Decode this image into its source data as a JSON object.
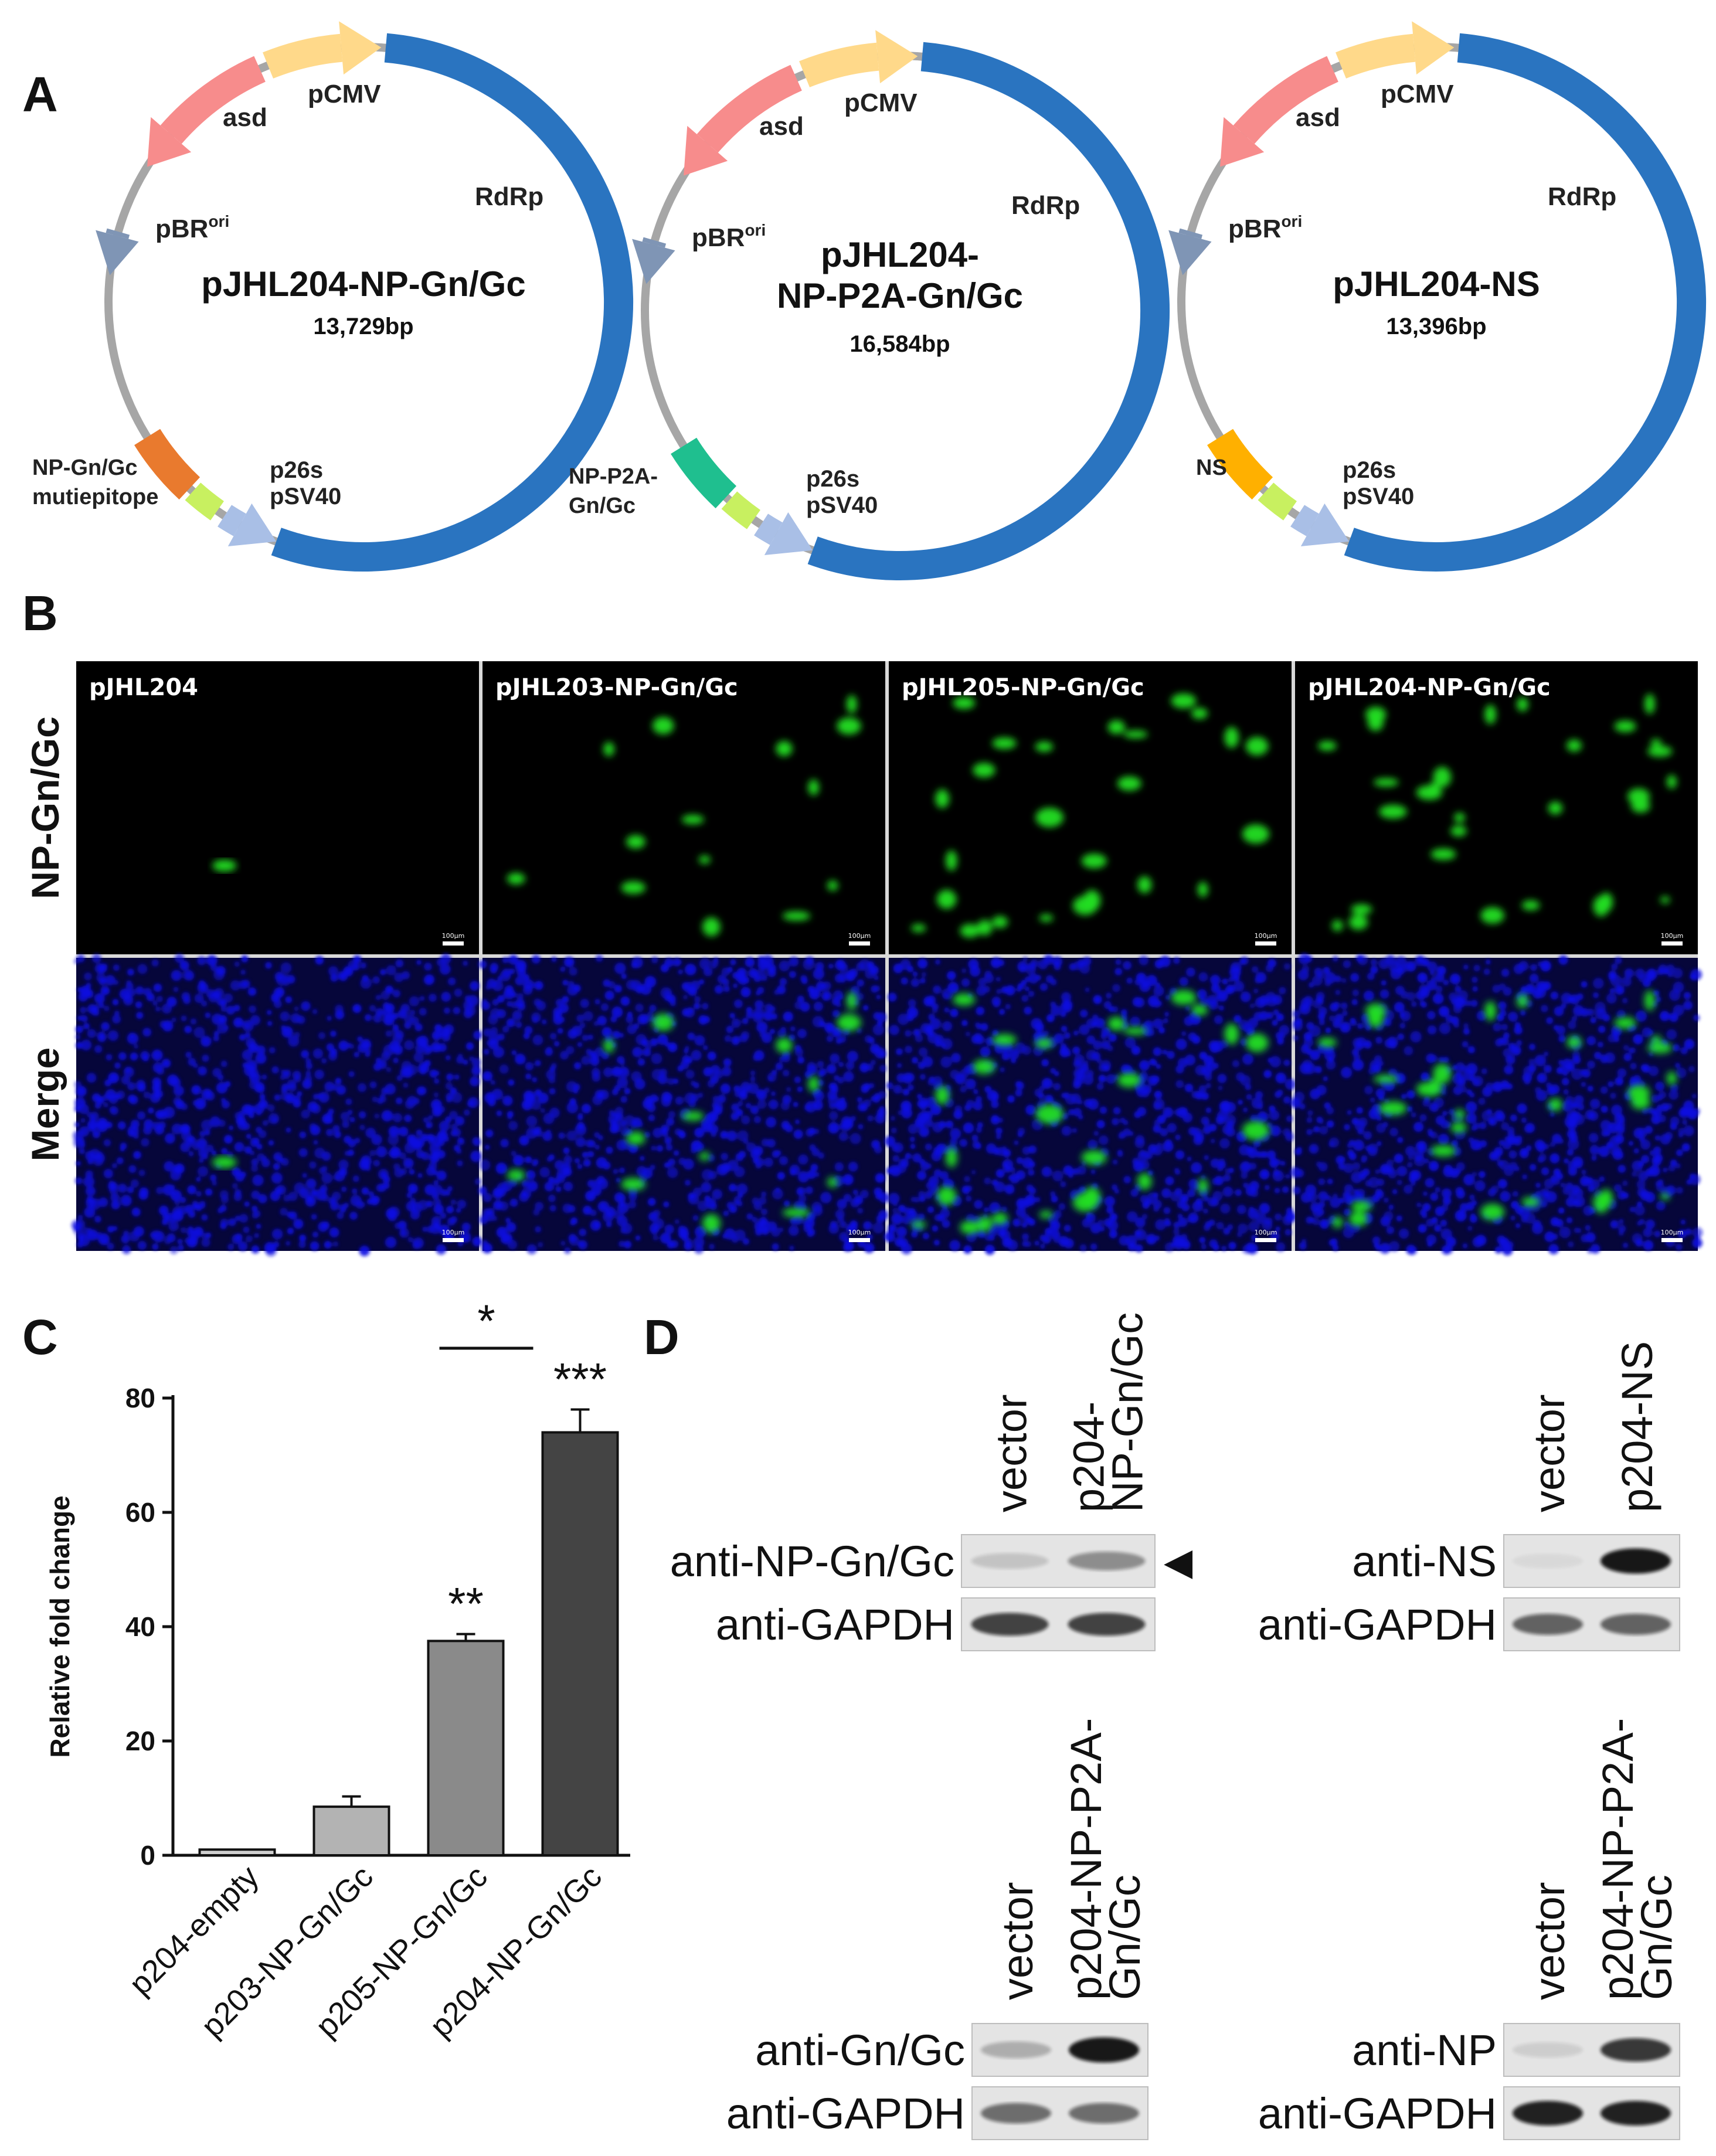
{
  "panels": {
    "A": "A",
    "B": "B",
    "C": "C",
    "D": "D"
  },
  "plasmid_maps": [
    {
      "name_lines": [
        "pJHL204-NP-Gn/Gc"
      ],
      "size": "13,729bp",
      "labels": {
        "asd": "asd",
        "pCMV": "pCMV",
        "RdRp": "RdRp",
        "pBR": "pBR",
        "ori": "ori",
        "p26s": "p26s",
        "pSV40": "pSV40"
      },
      "insert_label_lines": [
        "NP-Gn/Gc",
        "mutiepitope"
      ],
      "insert_color": "#e97a2e"
    },
    {
      "name_lines": [
        "pJHL204-",
        "NP-P2A-Gn/Gc"
      ],
      "size": "16,584bp",
      "labels": {
        "asd": "asd",
        "pCMV": "pCMV",
        "RdRp": "RdRp",
        "pBR": "pBR",
        "ori": "ori",
        "p26s": "p26s",
        "pSV40": "pSV40"
      },
      "insert_label_lines": [
        "NP-P2A-",
        "Gn/Gc"
      ],
      "insert_color": "#1fbf8f"
    },
    {
      "name_lines": [
        "pJHL204-NS"
      ],
      "size": "13,396bp",
      "labels": {
        "asd": "asd",
        "pCMV": "pCMV",
        "RdRp": "RdRp",
        "pBR": "pBR",
        "ori": "ori",
        "p26s": "p26s",
        "pSV40": "pSV40"
      },
      "insert_label_lines": [
        "NS"
      ],
      "insert_color": "#ffb000"
    }
  ],
  "microscopy": {
    "row_labels": [
      "NP-Gn/Gc",
      "Merge"
    ],
    "column_labels": [
      "pJHL204",
      "pJHL203-NP-Gn/Gc",
      "pJHL205-NP-Gn/Gc",
      "pJHL204-NP-Gn/Gc"
    ],
    "scale_bar_label": "100μm",
    "colors": {
      "green": "#22e022",
      "blue": "#1010e0",
      "background": "#000000"
    }
  },
  "chart_data": {
    "type": "bar",
    "categories": [
      "p204-empty",
      "p203-NP-Gn/Gc",
      "p205-NP-Gn/Gc",
      "p204-NP-Gn/Gc"
    ],
    "values": [
      1,
      8.5,
      37.5,
      74
    ],
    "errors": [
      0,
      1.8,
      1.2,
      4
    ],
    "bar_colors": [
      "#cfcfcf",
      "#b3b3b3",
      "#8a8a8a",
      "#444444"
    ],
    "significance": [
      "",
      "",
      "**",
      "***"
    ],
    "bracket": {
      "from": 2,
      "to": 3,
      "label": "*"
    },
    "ylabel": "Relative fold change",
    "xlabel": "",
    "ylim": [
      0,
      80
    ],
    "yticks": [
      0,
      20,
      40,
      60,
      80
    ]
  },
  "western_blots": [
    {
      "lanes": [
        "vector",
        "p204-\nNP-Gn/Gc"
      ],
      "rows": [
        "anti-NP-Gn/Gc",
        "anti-GAPDH"
      ],
      "arrow": "◀"
    },
    {
      "lanes": [
        "vector",
        "p204-NS"
      ],
      "rows": [
        "anti-NS",
        "anti-GAPDH"
      ]
    },
    {
      "lanes": [
        "vector",
        "p204-NP-P2A-\nGn/Gc"
      ],
      "rows": [
        "anti-Gn/Gc",
        "anti-GAPDH"
      ]
    },
    {
      "lanes": [
        "vector",
        "p204-NP-P2A-\nGn/Gc"
      ],
      "rows": [
        "anti-NP",
        "anti-GAPDH"
      ]
    }
  ]
}
